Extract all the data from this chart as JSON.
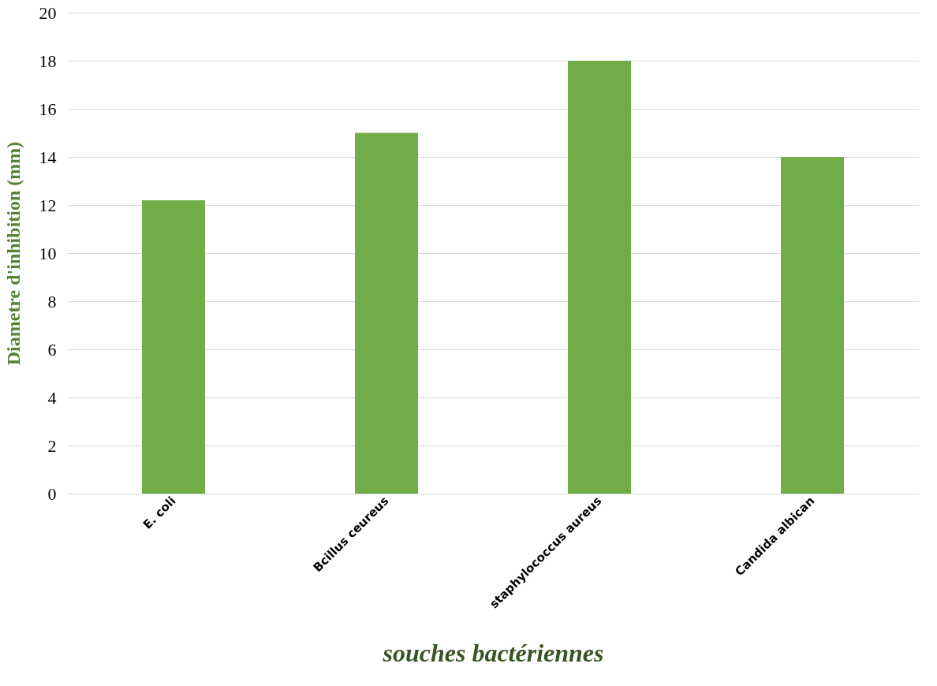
{
  "chart_data": {
    "type": "bar",
    "xlabel": "souches bactériennes",
    "ylabel": "Diametre d'inhibition (mm)",
    "categories": [
      "E. coli",
      "Bcillus ceureus",
      "staphylococcus aureus",
      "Candida albican"
    ],
    "values": [
      12.2,
      15,
      18,
      14
    ],
    "color": "#70ad47",
    "ylim": [
      0,
      20
    ],
    "yticks": [
      0,
      2,
      4,
      6,
      8,
      10,
      12,
      14,
      16,
      18,
      20
    ],
    "grid": "y"
  }
}
